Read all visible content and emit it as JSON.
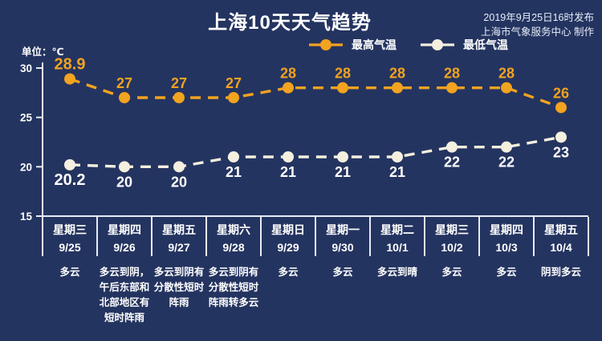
{
  "header": {
    "title": "上海10天天气趋势",
    "publish_line1": "2019年9月25日16时发布",
    "publish_line2": "上海市气象服务中心 制作"
  },
  "chart": {
    "unit_label": "单位：℃",
    "colors": {
      "background": "#243460",
      "high": "#f2a31f",
      "low": "#f4efdf",
      "axis": "#e8ebf3",
      "value_label": "#ffffff"
    }
  },
  "chart_data": {
    "type": "line",
    "title": "上海10天天气趋势",
    "categories": [
      "星期三 9/25",
      "星期四 9/26",
      "星期五 9/27",
      "星期六 9/28",
      "星期日 9/29",
      "星期一 9/30",
      "星期二 10/1",
      "星期三 10/2",
      "星期四 10/3",
      "星期五 10/4"
    ],
    "series": [
      {
        "name": "最高气温",
        "values": [
          28.9,
          27,
          27,
          27,
          28,
          28,
          28,
          28,
          28,
          26
        ],
        "color": "#f2a31f"
      },
      {
        "name": "最低气温",
        "values": [
          20.2,
          20,
          20,
          21,
          21,
          21,
          21,
          22,
          22,
          23
        ],
        "color": "#f4efdf"
      }
    ],
    "ylabel": "单位：℃",
    "ylim": [
      15,
      30
    ],
    "yticks": [
      30,
      25,
      20,
      15
    ],
    "grid": false,
    "line_style": "dashed",
    "legend_position": "top-center"
  },
  "forecast_table": {
    "days": [
      {
        "weekday": "星期三",
        "date": "9/25",
        "weather": "多云"
      },
      {
        "weekday": "星期四",
        "date": "9/26",
        "weather": "多云到阴，午后东部和北部地区有短时阵雨"
      },
      {
        "weekday": "星期五",
        "date": "9/27",
        "weather": "多云到阴有分散性短时阵雨"
      },
      {
        "weekday": "星期六",
        "date": "9/28",
        "weather": "多云到阴有分散性短时阵雨转多云"
      },
      {
        "weekday": "星期日",
        "date": "9/29",
        "weather": "多云"
      },
      {
        "weekday": "星期一",
        "date": "9/30",
        "weather": "多云"
      },
      {
        "weekday": "星期二",
        "date": "10/1",
        "weather": "多云到晴"
      },
      {
        "weekday": "星期三",
        "date": "10/2",
        "weather": "多云"
      },
      {
        "weekday": "星期四",
        "date": "10/3",
        "weather": "多云"
      },
      {
        "weekday": "星期五",
        "date": "10/4",
        "weather": "阴到多云"
      }
    ]
  }
}
